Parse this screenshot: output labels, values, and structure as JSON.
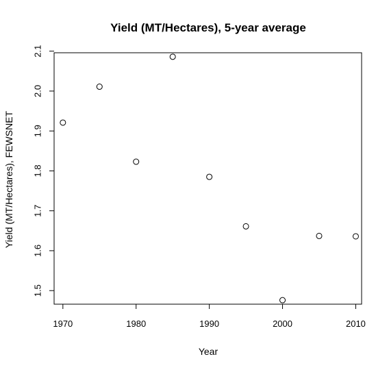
{
  "chart_data": {
    "type": "scatter",
    "title": "Yield (MT/Hectares), 5-year average",
    "xlabel": "Year",
    "ylabel": "Yield (MT/Hectares), FEWSNET",
    "x": [
      1970,
      1975,
      1980,
      1985,
      1990,
      1995,
      2000,
      2005,
      2010
    ],
    "y": [
      1.921,
      2.011,
      1.823,
      2.086,
      1.785,
      1.661,
      1.476,
      1.637,
      1.636
    ],
    "xlim": [
      1968.8,
      2010.8
    ],
    "ylim": [
      1.466,
      2.096
    ],
    "xticks": [
      1970,
      1980,
      1990,
      2000,
      2010
    ],
    "yticks": [
      "1.5",
      "1.6",
      "1.7",
      "1.8",
      "1.9",
      "2.0",
      "2.1"
    ],
    "grid": false,
    "legend": "none"
  }
}
